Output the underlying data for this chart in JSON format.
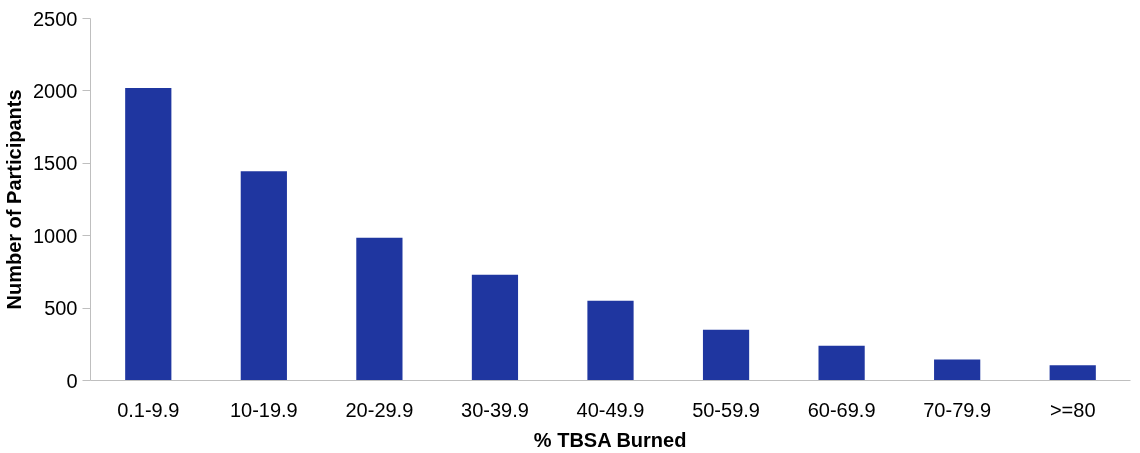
{
  "chart_data": {
    "type": "bar",
    "xlabel": "% TBSA Burned",
    "ylabel": "Number of Participants",
    "categories": [
      "0.1-9.9",
      "10-19.9",
      "20-29.9",
      "30-39.9",
      "40-49.9",
      "50-59.9",
      "60-69.9",
      "70-79.9",
      ">=80"
    ],
    "values": [
      2020,
      1445,
      985,
      730,
      550,
      350,
      240,
      145,
      105
    ],
    "color": "#1f36a0",
    "ylim": [
      0,
      2500
    ],
    "yticks": [
      0,
      500,
      1000,
      1500,
      2000,
      2500
    ],
    "grid": false
  }
}
